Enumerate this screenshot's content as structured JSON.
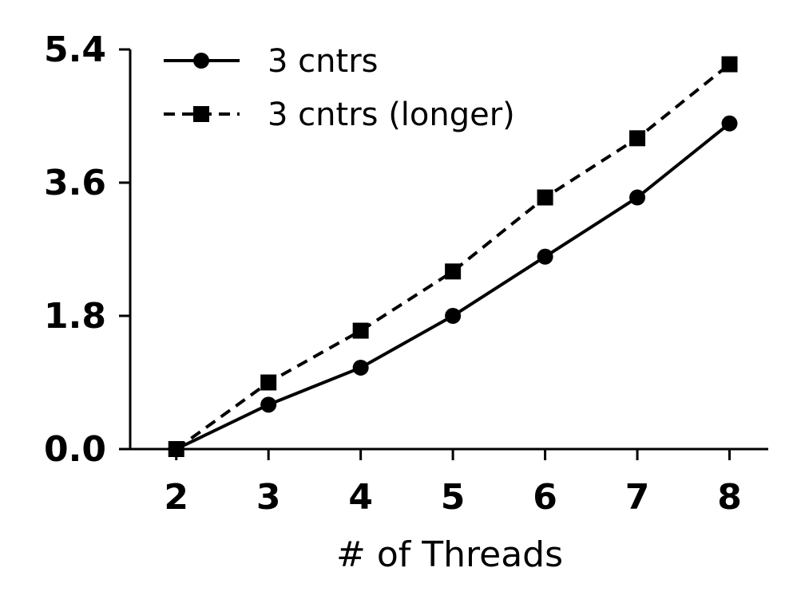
{
  "chart_data": {
    "type": "line",
    "title": "",
    "xlabel": "# of Threads",
    "ylabel": "",
    "x": [
      2,
      3,
      4,
      5,
      6,
      7,
      8
    ],
    "xticks": [
      "2",
      "3",
      "4",
      "5",
      "6",
      "7",
      "8"
    ],
    "yticks": [
      "0.0",
      "1.8",
      "3.6",
      "5.4"
    ],
    "ylim": [
      0,
      5.4
    ],
    "grid": false,
    "legend_position": "top-left",
    "series": [
      {
        "name": "3 cntrs",
        "values": [
          0.0,
          0.6,
          1.1,
          1.8,
          2.6,
          3.4,
          4.4
        ],
        "line_style": "solid",
        "marker": "circle",
        "color": "#000000"
      },
      {
        "name": "3 cntrs (longer)",
        "values": [
          0.0,
          0.9,
          1.6,
          2.4,
          3.4,
          4.2,
          5.2
        ],
        "line_style": "dashed",
        "marker": "square",
        "color": "#000000"
      }
    ]
  }
}
